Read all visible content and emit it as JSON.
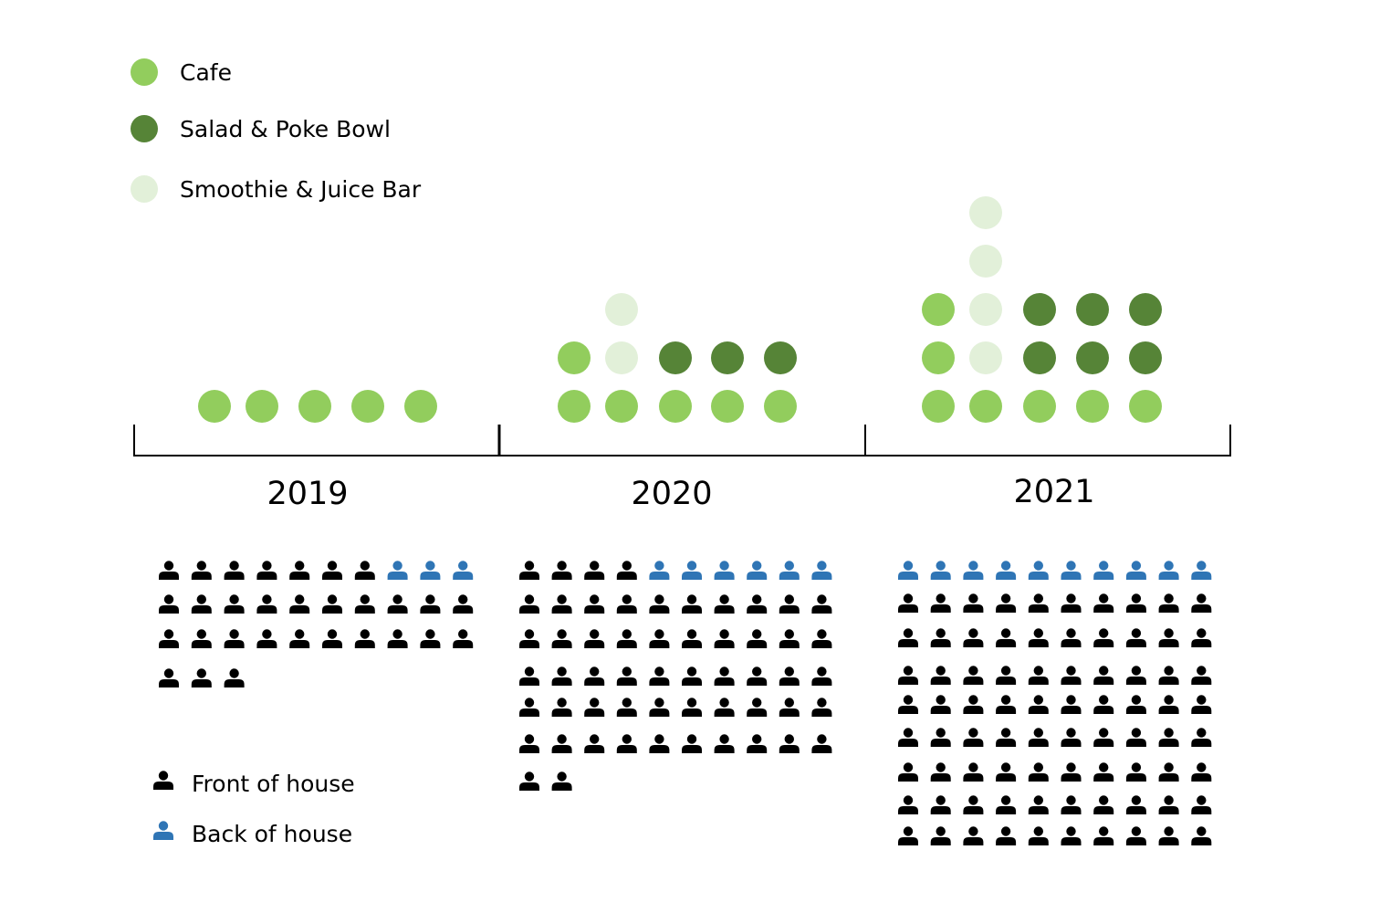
{
  "chart_data": {
    "type": "pictograph",
    "colors": {
      "Cafe": "#92cd5d",
      "Salad & Poke Bowl": "#568437",
      "Smoothie & Juice Bar": "#e2f0d9",
      "Front of house": "#000000",
      "Back of house": "#2f75b5"
    },
    "legend_top": [
      {
        "key": "Cafe",
        "label": "Cafe"
      },
      {
        "key": "Salad & Poke Bowl",
        "label": "Salad & Poke Bowl"
      },
      {
        "key": "Smoothie & Juice Bar",
        "label": "Smoothie & Juice Bar"
      }
    ],
    "legend_bottom": [
      {
        "key": "Front of house",
        "label": "Front of house"
      },
      {
        "key": "Back of house",
        "label": "Back of house"
      }
    ],
    "years": [
      {
        "label": "2019",
        "columns": [
          [
            "Cafe"
          ],
          [
            "Cafe"
          ],
          [
            "Cafe"
          ],
          [
            "Cafe"
          ],
          [
            "Cafe"
          ]
        ],
        "people": {
          "Front of house": 30,
          "Back of house": 3,
          "back_positions": [
            7,
            8,
            9
          ]
        }
      },
      {
        "label": "2020",
        "columns": [
          [
            "Cafe",
            "Cafe"
          ],
          [
            "Cafe",
            "Smoothie & Juice Bar",
            "Smoothie & Juice Bar"
          ],
          [
            "Cafe",
            "Salad & Poke Bowl"
          ],
          [
            "Cafe",
            "Salad & Poke Bowl"
          ],
          [
            "Cafe",
            "Salad & Poke Bowl"
          ]
        ],
        "people": {
          "Front of house": 56,
          "Back of house": 6,
          "back_positions": [
            4,
            5,
            6,
            7,
            8,
            9
          ]
        }
      },
      {
        "label": "2021",
        "columns": [
          [
            "Cafe",
            "Cafe",
            "Cafe"
          ],
          [
            "Cafe",
            "Smoothie & Juice Bar",
            "Smoothie & Juice Bar",
            "Smoothie & Juice Bar",
            "Smoothie & Juice Bar"
          ],
          [
            "Cafe",
            "Salad & Poke Bowl",
            "Salad & Poke Bowl"
          ],
          [
            "Cafe",
            "Salad & Poke Bowl",
            "Salad & Poke Bowl"
          ],
          [
            "Cafe",
            "Salad & Poke Bowl",
            "Salad & Poke Bowl"
          ]
        ],
        "people": {
          "Front of house": 80,
          "Back of house": 10,
          "back_positions": [
            0,
            1,
            2,
            3,
            4,
            5,
            6,
            7,
            8,
            9
          ]
        }
      }
    ]
  }
}
